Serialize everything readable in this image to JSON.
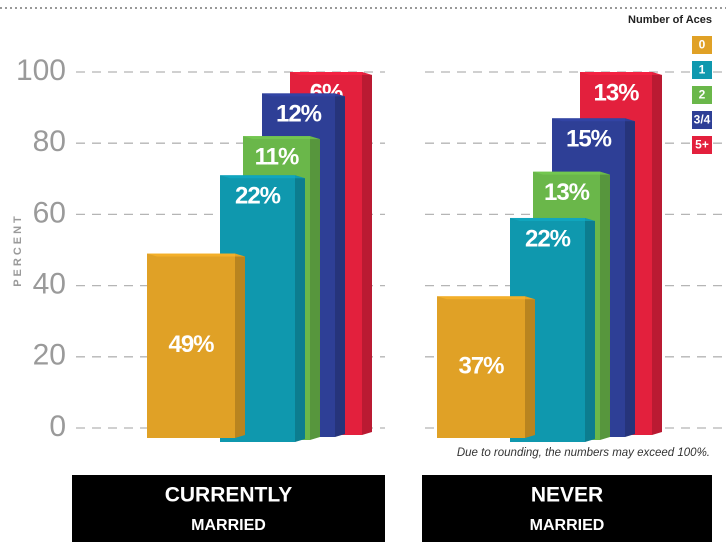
{
  "chart_data": {
    "type": "bar",
    "y_label": "PERCENT",
    "legend_title": "Number of Aces",
    "note": "Due to rounding, the numbers may exceed 100%.",
    "categories": [
      "CURRENTLY",
      "NEVER"
    ],
    "category_subtitles": [
      "MARRIED",
      "MARRIED"
    ],
    "stacked": true,
    "series": [
      {
        "name": "0",
        "color": "#e0a126",
        "values": [
          49,
          37
        ],
        "value_labels": [
          "49%",
          "37%"
        ]
      },
      {
        "name": "1",
        "color": "#0f98ae",
        "values": [
          22,
          22
        ],
        "value_labels": [
          "22%",
          "22%"
        ]
      },
      {
        "name": "2",
        "color": "#6ab74a",
        "values": [
          11,
          13
        ],
        "value_labels": [
          "11%",
          "13%"
        ]
      },
      {
        "name": "3/4",
        "color": "#2e3f96",
        "values": [
          12,
          15
        ],
        "value_labels": [
          "12%",
          "15%"
        ]
      },
      {
        "name": "5+",
        "color": "#e3203d",
        "values": [
          6,
          13
        ],
        "value_labels": [
          "6%",
          "13%"
        ]
      }
    ],
    "ylim": [
      0,
      100
    ],
    "yticks": [
      0,
      20,
      40,
      60,
      80,
      100
    ],
    "grid": true
  }
}
